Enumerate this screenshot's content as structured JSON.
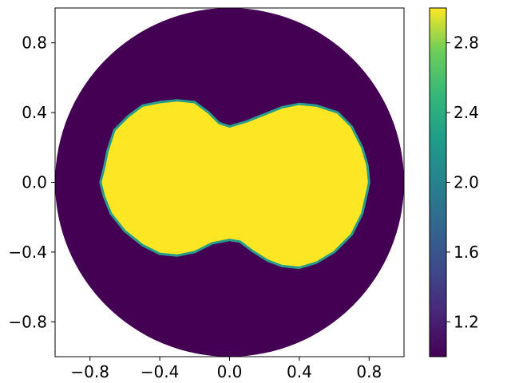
{
  "chart_data": {
    "type": "heatmap",
    "title": "",
    "xlabel": "",
    "ylabel": "",
    "xlim": [
      -1.0,
      1.0
    ],
    "ylim": [
      -1.0,
      1.0
    ],
    "domain": "unit disk",
    "colormap": "viridis",
    "color_range": [
      1.0,
      3.0
    ],
    "x_ticks": [
      -0.8,
      -0.4,
      0.0,
      0.4,
      0.8
    ],
    "x_tick_labels": [
      "−0.8",
      "−0.4",
      "0.0",
      "0.4",
      "0.8"
    ],
    "y_ticks": [
      0.8,
      0.4,
      0.0,
      -0.4,
      -0.8
    ],
    "y_tick_labels": [
      "0.8",
      "0.4",
      "0.0",
      "−0.4",
      "−0.8"
    ],
    "colorbar_ticks": [
      2.8,
      2.4,
      2.0,
      1.6,
      1.2
    ],
    "colorbar_tick_labels": [
      "2.8",
      "2.4",
      "2.0",
      "1.6",
      "1.2"
    ],
    "regions": [
      {
        "value": 1.0,
        "description": "outer disk"
      },
      {
        "value": 3.0,
        "description": "inner peanut-shaped region",
        "boundary": [
          [
            0.0,
            0.32
          ],
          [
            -0.06,
            0.34
          ],
          [
            -0.12,
            0.4
          ],
          [
            -0.2,
            0.46
          ],
          [
            -0.3,
            0.47
          ],
          [
            -0.4,
            0.46
          ],
          [
            -0.5,
            0.44
          ],
          [
            -0.58,
            0.38
          ],
          [
            -0.66,
            0.3
          ],
          [
            -0.7,
            0.18
          ],
          [
            -0.72,
            0.08
          ],
          [
            -0.74,
            0.0
          ],
          [
            -0.72,
            -0.08
          ],
          [
            -0.68,
            -0.18
          ],
          [
            -0.6,
            -0.28
          ],
          [
            -0.5,
            -0.36
          ],
          [
            -0.4,
            -0.41
          ],
          [
            -0.3,
            -0.42
          ],
          [
            -0.2,
            -0.4
          ],
          [
            -0.1,
            -0.35
          ],
          [
            0.0,
            -0.33
          ],
          [
            0.06,
            -0.34
          ],
          [
            0.14,
            -0.4
          ],
          [
            0.22,
            -0.45
          ],
          [
            0.3,
            -0.48
          ],
          [
            0.4,
            -0.49
          ],
          [
            0.5,
            -0.46
          ],
          [
            0.6,
            -0.4
          ],
          [
            0.7,
            -0.3
          ],
          [
            0.76,
            -0.18
          ],
          [
            0.79,
            -0.05
          ],
          [
            0.8,
            0.0
          ],
          [
            0.79,
            0.1
          ],
          [
            0.76,
            0.2
          ],
          [
            0.7,
            0.32
          ],
          [
            0.62,
            0.4
          ],
          [
            0.5,
            0.44
          ],
          [
            0.4,
            0.45
          ],
          [
            0.3,
            0.43
          ],
          [
            0.2,
            0.39
          ],
          [
            0.1,
            0.35
          ]
        ]
      }
    ],
    "colors": {
      "low": "#440154",
      "high": "#fde725",
      "edge": "#2a9c8a"
    }
  }
}
